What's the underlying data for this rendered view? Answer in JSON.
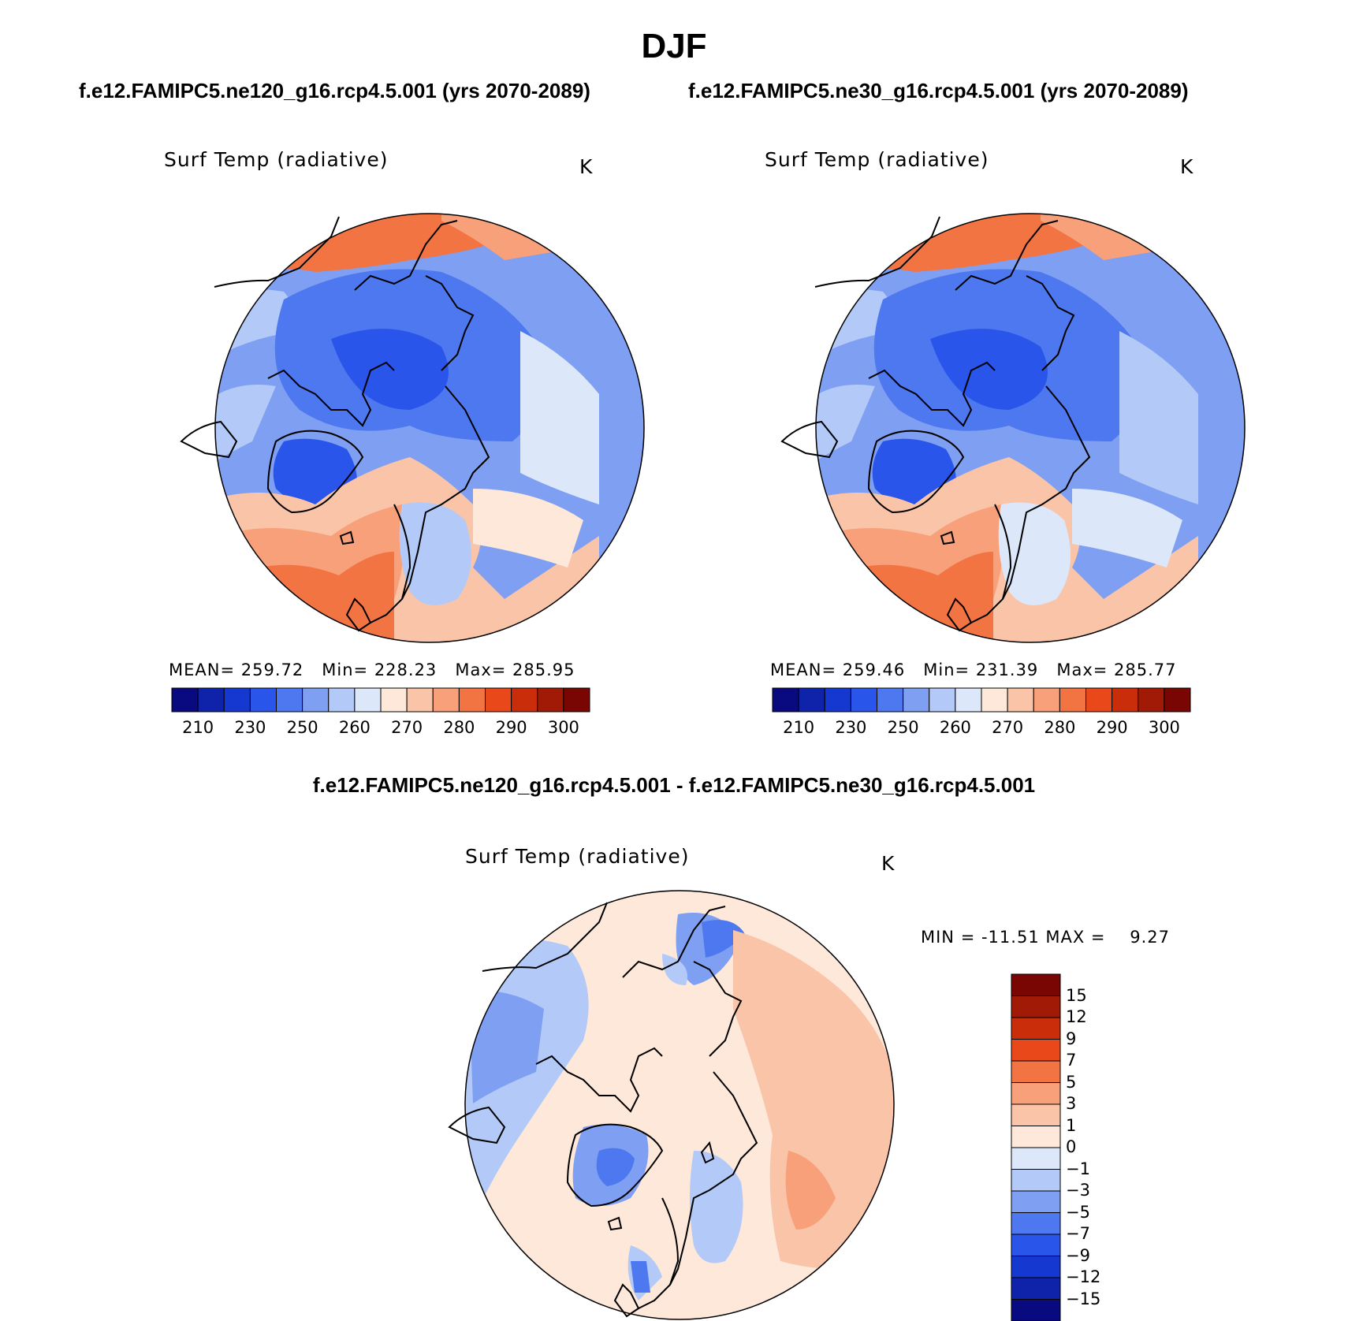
{
  "title": "DJF",
  "panels": [
    {
      "case": "f.e12.FAMIPC5.ne120_g16.rcp4.5.001 (yrs 2070-2089)",
      "variable": "Surf Temp (radiative)",
      "units": "K",
      "stats": {
        "mean": "259.72",
        "min": "228.23",
        "max": "285.95"
      }
    },
    {
      "case": "f.e12.FAMIPC5.ne30_g16.rcp4.5.001 (yrs 2070-2089)",
      "variable": "Surf Temp (radiative)",
      "units": "K",
      "stats": {
        "mean": "259.46",
        "min": "231.39",
        "max": "285.77"
      }
    }
  ],
  "difference": {
    "title": "f.e12.FAMIPC5.ne120_g16.rcp4.5.001 - f.e12.FAMIPC5.ne30_g16.rcp4.5.001",
    "variable": "Surf Temp (radiative)",
    "units": "K",
    "min_label": "MIN =",
    "min": "-11.51",
    "max_label": "MAX =",
    "max": "9.27"
  },
  "labels": {
    "mean": "MEAN=",
    "min": "Min=",
    "max": "Max="
  },
  "colorbar_abs": {
    "ticks": [
      "210",
      "230",
      "250",
      "260",
      "270",
      "280",
      "290",
      "300"
    ],
    "colors": [
      "#0a0a80",
      "#0f22aa",
      "#1538d0",
      "#2a55ea",
      "#4d78f0",
      "#7e9ff2",
      "#b3c9f7",
      "#dce8fa",
      "#fde8da",
      "#fac4a8",
      "#f7a07a",
      "#f37443",
      "#e8481a",
      "#c92d0a",
      "#a11a06",
      "#7a0604"
    ]
  },
  "colorbar_diff": {
    "ticks": [
      "15",
      "12",
      "9",
      "7",
      "5",
      "3",
      "1",
      "0",
      "−1",
      "−3",
      "−5",
      "−7",
      "−9",
      "−12",
      "−15"
    ],
    "colors": [
      "#7a0604",
      "#a11a06",
      "#c92d0a",
      "#e8481a",
      "#f37443",
      "#f7a07a",
      "#fac4a8",
      "#fde8da",
      "#dce8fa",
      "#b3c9f7",
      "#7e9ff2",
      "#4d78f0",
      "#2a55ea",
      "#1538d0",
      "#0f22aa",
      "#0a0a80"
    ]
  },
  "map_colors": {
    "deep": "#2a55ea",
    "mid": "#4d78f0",
    "light_blue": "#7e9ff2",
    "pale_blue": "#b3c9f7",
    "ice_blue": "#dce8fa",
    "cream": "#fde8da",
    "peach": "#fac4a8",
    "salmon": "#f7a07a",
    "orange": "#f37443",
    "red_orange": "#e8481a"
  }
}
